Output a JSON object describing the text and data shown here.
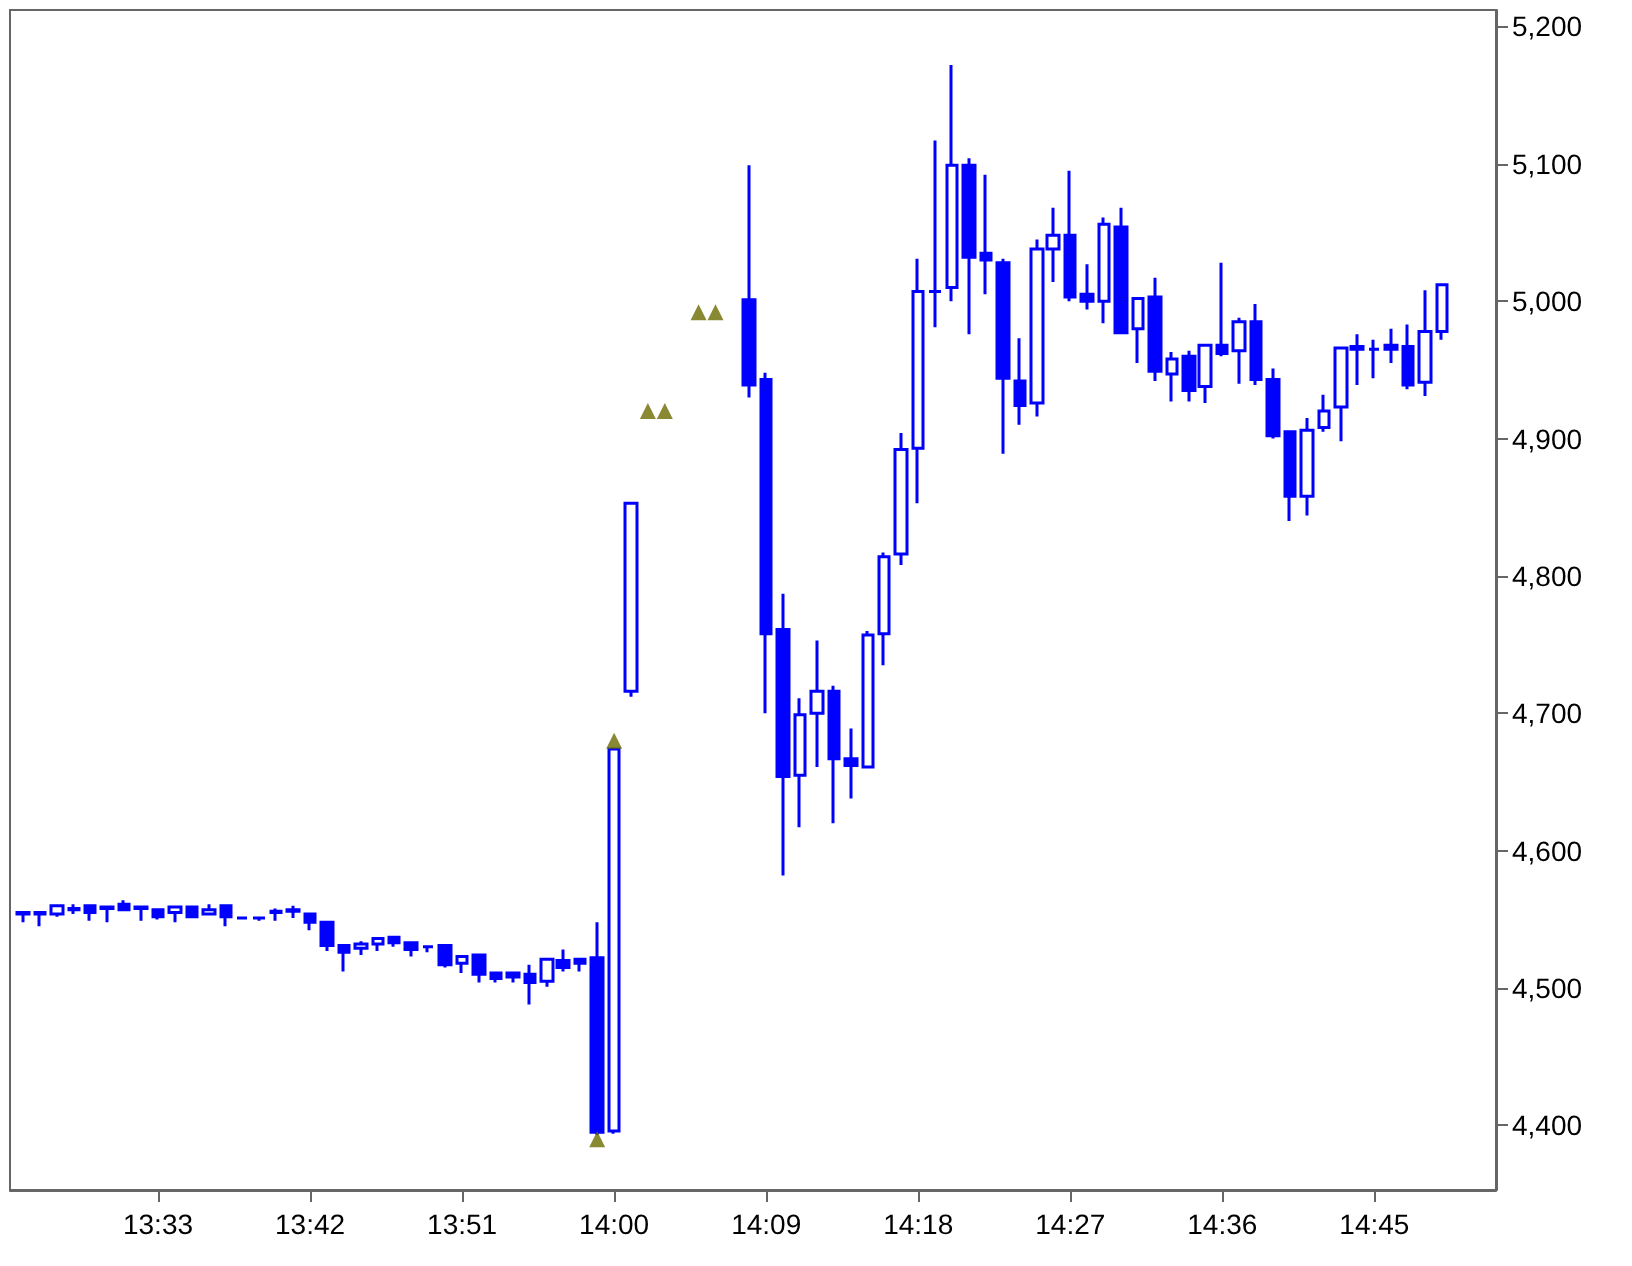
{
  "chart_data": {
    "type": "candlestick",
    "color": "#0000ff",
    "marker": "triangle",
    "grid": false,
    "x": [
      13.4167,
      13.4333,
      13.45,
      13.4667,
      13.4833,
      13.5,
      13.5167,
      13.5333,
      13.55,
      13.5667,
      13.5833,
      13.6,
      13.6167,
      13.6333,
      13.65,
      13.6667,
      13.6833,
      13.7,
      13.7167,
      13.7333,
      13.75,
      13.7667,
      13.7833,
      13.8,
      13.8167,
      13.8333,
      13.85,
      13.8667,
      13.8833,
      13.9,
      13.9167,
      13.9333,
      13.95,
      13.9667,
      13.9833,
      14,
      14.0167,
      14.1333,
      14.15,
      14.1667,
      14.1833,
      14.2,
      14.2167,
      14.2333,
      14.25,
      14.2667,
      14.2833,
      14.3,
      14.3167,
      14.3333,
      14.35,
      14.3667,
      14.3833,
      14.4,
      14.4167,
      14.4333,
      14.45,
      14.4667,
      14.4833,
      14.5,
      14.5167,
      14.5333,
      14.55,
      14.5667,
      14.5833,
      14.6,
      14.6167,
      14.6333,
      14.65,
      14.6667,
      14.6833,
      14.7,
      14.7167,
      14.7333,
      14.75,
      14.7667,
      14.7833,
      14.8,
      14.8167
    ],
    "ohlc": [
      [
        4555,
        4555,
        4548,
        4554
      ],
      [
        4555,
        4555,
        4545,
        4554
      ],
      [
        4554,
        4560,
        4552,
        4560
      ],
      [
        4558,
        4561,
        4554,
        4557
      ],
      [
        4560,
        4560,
        4549,
        4555
      ],
      [
        4559,
        4559,
        4548,
        4558
      ],
      [
        4561,
        4564,
        4557,
        4557
      ],
      [
        4559,
        4559,
        4549,
        4558
      ],
      [
        4557,
        4557,
        4550,
        4552
      ],
      [
        4555,
        4559,
        4548,
        4559
      ],
      [
        4559,
        4559,
        4552,
        4552
      ],
      [
        4554,
        4561,
        4553,
        4557
      ],
      [
        4560,
        4560,
        4545,
        4552
      ],
      [
        4551,
        4552,
        4550,
        4551
      ],
      [
        4551,
        4551,
        4549,
        4551
      ],
      [
        4556,
        4558,
        4549,
        4555
      ],
      [
        4557,
        4560,
        4551,
        4556
      ],
      [
        4554,
        4554,
        4542,
        4548
      ],
      [
        4548,
        4548,
        4527,
        4531
      ],
      [
        4531,
        4531,
        4512,
        4526
      ],
      [
        4529,
        4534,
        4524,
        4532
      ],
      [
        4532,
        4536,
        4527,
        4536
      ],
      [
        4537,
        4538,
        4530,
        4533
      ],
      [
        4533,
        4533,
        4523,
        4528
      ],
      [
        4530,
        4530,
        4526,
        4530
      ],
      [
        4531,
        4531,
        4515,
        4517
      ],
      [
        4518,
        4523,
        4511,
        4523
      ],
      [
        4524,
        4525,
        4504,
        4510
      ],
      [
        4511,
        4512,
        4504,
        4507
      ],
      [
        4511,
        4512,
        4504,
        4508
      ],
      [
        4510,
        4517,
        4488,
        4504
      ],
      [
        4505,
        4521,
        4501,
        4521
      ],
      [
        4520,
        4528,
        4512,
        4515
      ],
      [
        4521,
        4521,
        4512,
        4518
      ],
      [
        4522,
        4548,
        4393,
        4395
      ],
      [
        4396,
        4674,
        4394,
        4674
      ],
      [
        4716,
        4853,
        4712,
        4853
      ],
      [
        5001,
        5099,
        4930,
        4939
      ],
      [
        4943,
        4948,
        4700,
        4758
      ],
      [
        4761,
        4787,
        4582,
        4654
      ],
      [
        4655,
        4711,
        4617,
        4699
      ],
      [
        4700,
        4753,
        4661,
        4716
      ],
      [
        4716,
        4720,
        4620,
        4667
      ],
      [
        4667,
        4689,
        4638,
        4662
      ],
      [
        4661,
        4760,
        4660,
        4757
      ],
      [
        4758,
        4817,
        4735,
        4814
      ],
      [
        4816,
        4904,
        4808,
        4892
      ],
      [
        4893,
        5031,
        4853,
        5007
      ],
      [
        5007,
        5117,
        4981,
        5007
      ],
      [
        5010,
        5172,
        5000,
        5099
      ],
      [
        5099,
        5104,
        4976,
        5032
      ],
      [
        5035,
        5092,
        5005,
        5030
      ],
      [
        5028,
        5031,
        4889,
        4944
      ],
      [
        4942,
        4973,
        4910,
        4924
      ],
      [
        4926,
        5045,
        4916,
        5038
      ],
      [
        5038,
        5068,
        5014,
        5048
      ],
      [
        5048,
        5095,
        5000,
        5003
      ],
      [
        5005,
        5027,
        4994,
        5000
      ],
      [
        5000,
        5061,
        4984,
        5056
      ],
      [
        5054,
        5068,
        4976,
        4977
      ],
      [
        4980,
        5002,
        4955,
        5002
      ],
      [
        5003,
        5017,
        4942,
        4949
      ],
      [
        4947,
        4963,
        4927,
        4958
      ],
      [
        4960,
        4964,
        4927,
        4935
      ],
      [
        4938,
        4968,
        4926,
        4968
      ],
      [
        4968,
        5028,
        4960,
        4962
      ],
      [
        4964,
        4988,
        4940,
        4985
      ],
      [
        4985,
        4998,
        4939,
        4943
      ],
      [
        4943,
        4951,
        4900,
        4902
      ],
      [
        4905,
        4905,
        4840,
        4858
      ],
      [
        4858,
        4915,
        4844,
        4906
      ],
      [
        4908,
        4932,
        4905,
        4920
      ],
      [
        4923,
        4966,
        4898,
        4966
      ],
      [
        4967,
        4976,
        4939,
        4965
      ],
      [
        4965,
        4972,
        4944,
        4965
      ],
      [
        4968,
        4980,
        4955,
        4965
      ],
      [
        4967,
        4983,
        4936,
        4939
      ],
      [
        4941,
        5008,
        4931,
        4978
      ],
      [
        4978,
        5012,
        4972,
        5012
      ]
    ],
    "series": [
      {
        "type": "scatter",
        "color": "#6b6b00",
        "x": [
          13.9833,
          14,
          14.0333,
          14.05,
          14.0833,
          14.1
        ],
        "values": [
          4390,
          4680,
          4920,
          4920,
          4992,
          4992
        ]
      }
    ],
    "xlim": [
      13.404,
      14.87
    ],
    "xticks": [
      {
        "value": 13.55,
        "label": "13:33"
      },
      {
        "value": 13.7,
        "label": "13:42"
      },
      {
        "value": 13.85,
        "label": "13:51"
      },
      {
        "value": 14,
        "label": "14:00"
      },
      {
        "value": 14.15,
        "label": "14:09"
      },
      {
        "value": 14.3,
        "label": "14:18"
      },
      {
        "value": 14.45,
        "label": "14:27"
      },
      {
        "value": 14.6,
        "label": "14:36"
      },
      {
        "value": 14.75,
        "label": "14:45"
      }
    ],
    "ylim": [
      4353,
      5212
    ],
    "yticks": [
      {
        "value": 4400,
        "label": "4,400"
      },
      {
        "value": 4500,
        "label": "4,500"
      },
      {
        "value": 4600,
        "label": "4,600"
      },
      {
        "value": 4700,
        "label": "4,700"
      },
      {
        "value": 4800,
        "label": "4,800"
      },
      {
        "value": 4900,
        "label": "4,900"
      },
      {
        "value": 5000,
        "label": "5,000"
      },
      {
        "value": 5100,
        "label": "5,100"
      },
      {
        "value": 5200,
        "label": "5,200"
      }
    ]
  }
}
